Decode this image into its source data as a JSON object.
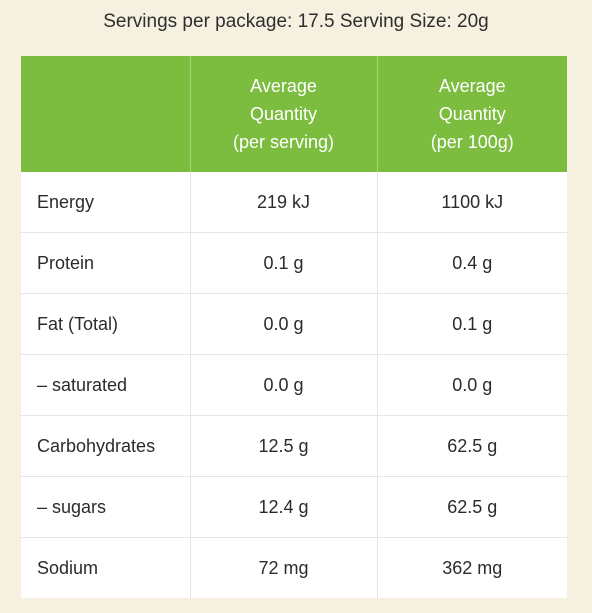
{
  "caption": "Servings per package: 17.5 Serving Size: 20g",
  "table": {
    "headers": [
      "",
      [
        "Average",
        "Quantity",
        "(per serving)"
      ],
      [
        "Average",
        "Quantity",
        "(per 100g)"
      ]
    ],
    "rows": [
      [
        "Energy",
        "219 kJ",
        "1100 kJ"
      ],
      [
        "Protein",
        "0.1 g",
        "0.4 g"
      ],
      [
        "Fat (Total)",
        "0.0 g",
        "0.1 g"
      ],
      [
        "– saturated",
        "0.0 g",
        "0.0 g"
      ],
      [
        "Carbohydrates",
        "12.5 g",
        "62.5 g"
      ],
      [
        "– sugars",
        "12.4 g",
        "62.5 g"
      ],
      [
        "Sodium",
        "72 mg",
        "362 mg"
      ]
    ]
  },
  "colors": {
    "background": "#f6f0e1",
    "header_green": "#7cbc3f",
    "header_text": "#ffffff",
    "row_border": "#e6e6e6"
  }
}
